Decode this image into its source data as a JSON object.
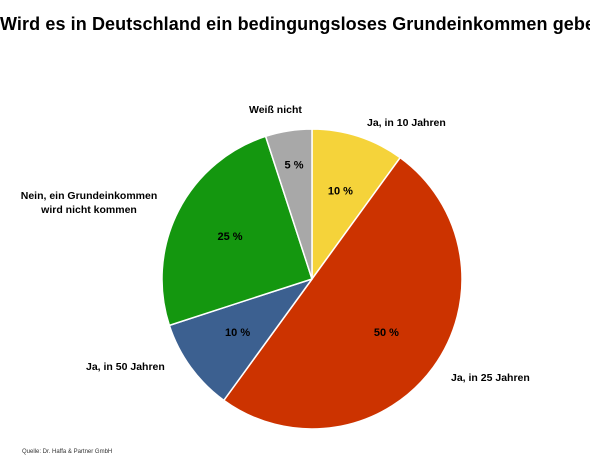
{
  "chart_data": {
    "type": "pie",
    "title": "Wird es in Deutschland ein bedingungsloses Grundeinkommen geben?",
    "slices": [
      {
        "label": "Ja, in 10 Jahren",
        "value": 10,
        "value_label": "10 %",
        "color": "#f5d33a"
      },
      {
        "label": "Ja, in 25 Jahren",
        "value": 50,
        "value_label": "50 %",
        "color": "#cc3300"
      },
      {
        "label": "Ja, in 50 Jahren",
        "value": 10,
        "value_label": "10 %",
        "color": "#3c6090"
      },
      {
        "label": "Nein, ein Grundeinkommen wird nicht kommen",
        "value": 25,
        "value_label": "25 %",
        "color": "#14970f"
      },
      {
        "label": "Weiß nicht",
        "value": 5,
        "value_label": "5 %",
        "color": "#a8a8a8"
      }
    ],
    "start_angle_deg": 0,
    "direction": "clockwise",
    "legend": "none",
    "source": "Quelle: Dr. Haffa & Partner GmbH"
  },
  "labels": {
    "ja_10": "Ja, in 10 Jahren",
    "ja_25": "Ja, in 25 Jahren",
    "ja_50": "Ja, in 50 Jahren",
    "nein_line1": "Nein, ein Grundeinkommen",
    "nein_line2": "wird nicht kommen",
    "weiss_nicht": "Weiß nicht"
  }
}
